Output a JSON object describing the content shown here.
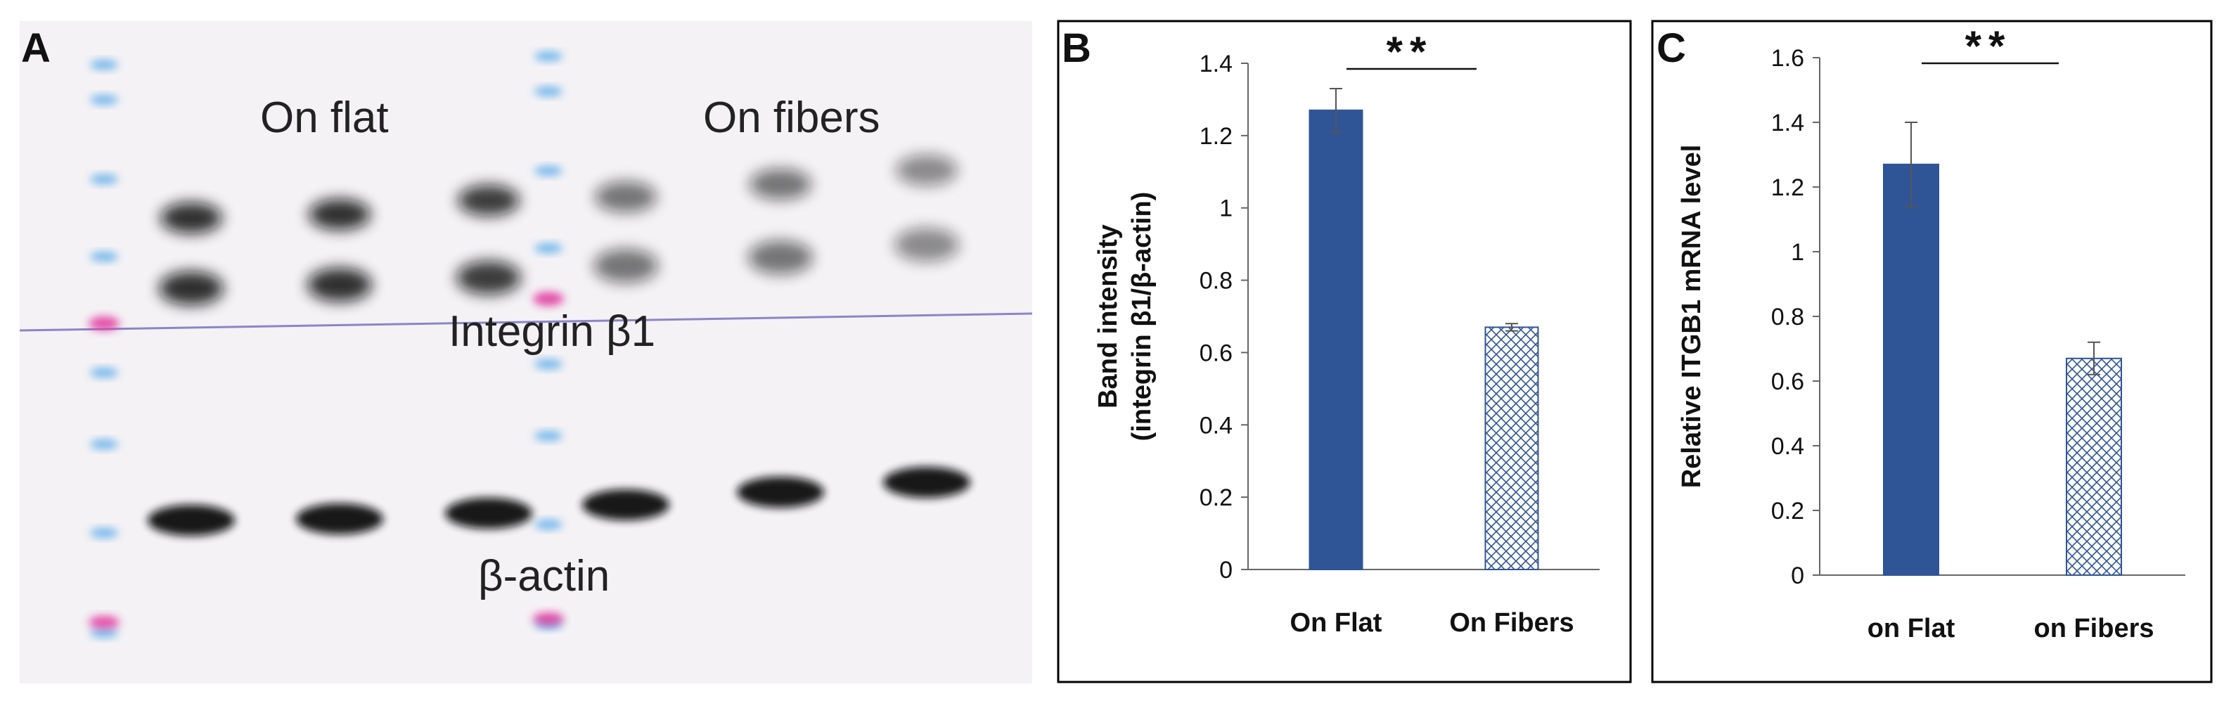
{
  "panel_a": {
    "letter": "A",
    "label_flat": "On flat",
    "label_fibers": "On fibers",
    "label_integrin": "Integrin β1",
    "label_actin": "β-actin"
  },
  "colors": {
    "bar_solid": "#2f5597",
    "bar_hatch": "#2f5597",
    "marker_blue": "#4aa3e8",
    "marker_magenta": "#e0309a",
    "band": "#0a0a0a",
    "membrane": "#f4f2f4"
  },
  "chart_data": [
    {
      "type": "bar",
      "panel": "B",
      "categories": [
        "On Flat",
        "On Fibers"
      ],
      "values": [
        1.27,
        0.67
      ],
      "errors": [
        0.06,
        0.01
      ],
      "patterns": [
        "solid",
        "crosshatch"
      ],
      "ylabel_line1": "Band intensity",
      "ylabel_line2": "(integrin β1/β-actin)",
      "ylim": [
        0,
        1.4
      ],
      "yticks": [
        0,
        0.2,
        0.4,
        0.6,
        0.8,
        1,
        1.2,
        1.4
      ],
      "ytick_labels": [
        "0",
        "0.2",
        "0.4",
        "0.6",
        "0.8",
        "1",
        "1.2",
        "1.4"
      ],
      "significance": "**"
    },
    {
      "type": "bar",
      "panel": "C",
      "categories": [
        "on Flat",
        "on Fibers"
      ],
      "values": [
        1.27,
        0.67
      ],
      "errors": [
        0.13,
        0.05
      ],
      "patterns": [
        "solid",
        "crosshatch"
      ],
      "ylabel_line1": "Relative ITGB1 mRNA level",
      "ylabel_line2": "",
      "ylim": [
        0,
        1.6
      ],
      "yticks": [
        0,
        0.2,
        0.4,
        0.6,
        0.8,
        1,
        1.2,
        1.4,
        1.6
      ],
      "ytick_labels": [
        "0",
        "0.2",
        "0.4",
        "0.6",
        "0.8",
        "1",
        "1.2",
        "1.4",
        "1.6"
      ],
      "significance": "**"
    }
  ]
}
